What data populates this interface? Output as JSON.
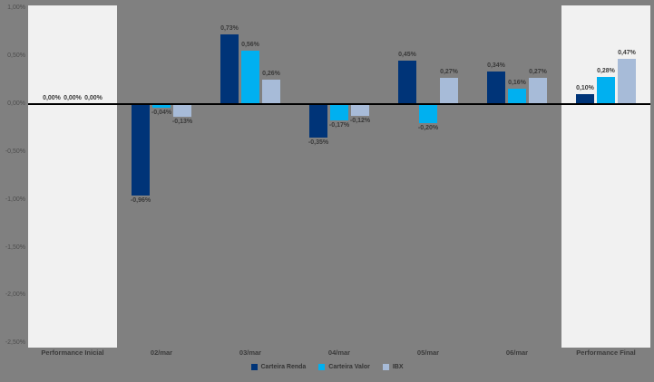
{
  "chart_data": {
    "type": "bar",
    "title": "",
    "categories": [
      "Performance Inicial",
      "02/mar",
      "03/mar",
      "04/mar",
      "05/mar",
      "06/mar",
      "Performance Final"
    ],
    "series": [
      {
        "name": "Carteira Renda",
        "color": "#003478",
        "values": [
          0.0,
          -0.96,
          0.73,
          -0.35,
          0.45,
          0.34,
          0.1
        ],
        "labels": [
          "0,00%",
          "-0,96%",
          "0,73%",
          "-0,35%",
          "0,45%",
          "0,34%",
          "0,10%"
        ]
      },
      {
        "name": "Carteira Valor",
        "color": "#00b0f0",
        "values": [
          0.0,
          -0.04,
          0.56,
          -0.17,
          -0.2,
          0.16,
          0.28
        ],
        "labels": [
          "0,00%",
          "-0,04%",
          "0,56%",
          "-0,17%",
          "-0,20%",
          "0,16%",
          "0,28%"
        ]
      },
      {
        "name": "IBX",
        "color": "#a7bbd8",
        "values": [
          0.0,
          -0.13,
          0.26,
          -0.12,
          0.27,
          0.27,
          0.47
        ],
        "labels": [
          "0,00%",
          "-0,13%",
          "0,26%",
          "-0,12%",
          "0,27%",
          "0,27%",
          "0,47%"
        ]
      }
    ],
    "y_axis": {
      "ticks": [
        "1,00%",
        "0,50%",
        "0,00%",
        "-0,50%",
        "-1,00%",
        "-1,50%",
        "-2,00%",
        "-2,50%"
      ],
      "max": 1.0,
      "min": -2.5,
      "step": 0.5
    },
    "highlighted_category_indices": [
      0,
      6
    ],
    "legend_position": "bottom",
    "grid": false,
    "colors": {
      "background": "#808080",
      "highlight_band": "#f1f1f1",
      "axis_line": "#000000"
    }
  }
}
